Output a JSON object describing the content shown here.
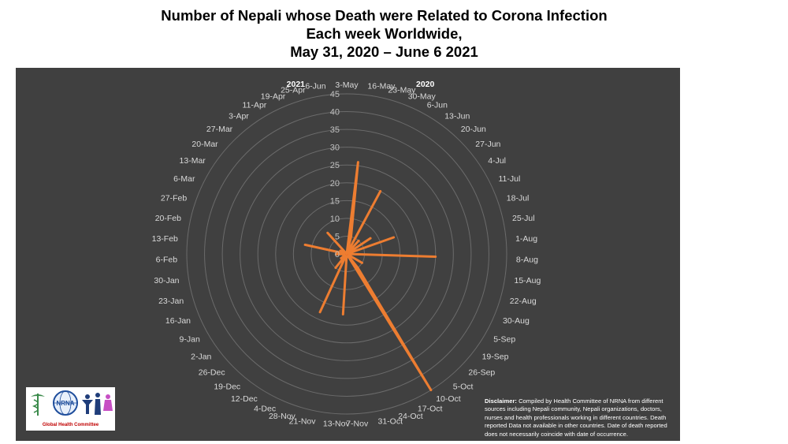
{
  "title": {
    "line1": "Number of Nepali whose Death were Related to Corona Infection",
    "line2": "Each week Worldwide,",
    "line3": "May 31, 2020 – June 6 2021"
  },
  "chart_data": {
    "type": "radar",
    "year_labels": [
      "2021",
      "2020"
    ],
    "categories": [
      "3-May",
      "16-May",
      "23-May",
      "30-May",
      "6-Jun",
      "13-Jun",
      "20-Jun",
      "27-Jun",
      "4-Jul",
      "11-Jul",
      "18-Jul",
      "25-Jul",
      "1-Aug",
      "8-Aug",
      "15-Aug",
      "22-Aug",
      "30-Aug",
      "5-Sep",
      "19-Sep",
      "26-Sep",
      "5-Oct",
      "10-Oct",
      "17-Oct",
      "24-Oct",
      "31-Oct",
      "7-Nov",
      "13-Nov",
      "21-Nov",
      "28-Nov",
      "4-Dec",
      "12-Dec",
      "19-Dec",
      "26-Dec",
      "2-Jan",
      "9-Jan",
      "16-Jan",
      "23-Jan",
      "30-Jan",
      "6-Feb",
      "13-Feb",
      "20-Feb",
      "27-Feb",
      "6-Mar",
      "13-Mar",
      "20-Mar",
      "27-Mar",
      "3-Apr",
      "11-Apr",
      "19-Apr",
      "25-Apr",
      "6-Jun"
    ],
    "series": [
      {
        "values": [
          0,
          26,
          5,
          0,
          20,
          0,
          5,
          0,
          8,
          0,
          14,
          0,
          0,
          25,
          0,
          0,
          0,
          5,
          0,
          0,
          5,
          45,
          0,
          0,
          0,
          0,
          17,
          0,
          0,
          18,
          0,
          5,
          0,
          2,
          0,
          1,
          0,
          0,
          3,
          0,
          12,
          0,
          2,
          0,
          0,
          8,
          0,
          0,
          0,
          0,
          0
        ]
      }
    ],
    "rlim": [
      0,
      45
    ],
    "radial_ticks": [
      "0",
      "5",
      "10",
      "15",
      "20",
      "25",
      "30",
      "35",
      "40",
      "45"
    ],
    "grid": true,
    "colors": {
      "background": "#404040",
      "series": "#ed7d31",
      "grid": "#6b6b6b",
      "tick_text": "#bfbfbf",
      "axis_text": "#d9d9d9"
    }
  },
  "logo": {
    "caption": "Global Health Committee",
    "badge_text": "NRNA"
  },
  "disclaimer": {
    "label": "Disclaimer:",
    "text": "Compiled by Health Committee of NRNA from different sources including Nepali community, Nepali organizations, doctors, nurses and health professionals working in different countries. Death reported Data not available in other countries. Date of death reported does not necessarily coincide with date of occurrence."
  }
}
